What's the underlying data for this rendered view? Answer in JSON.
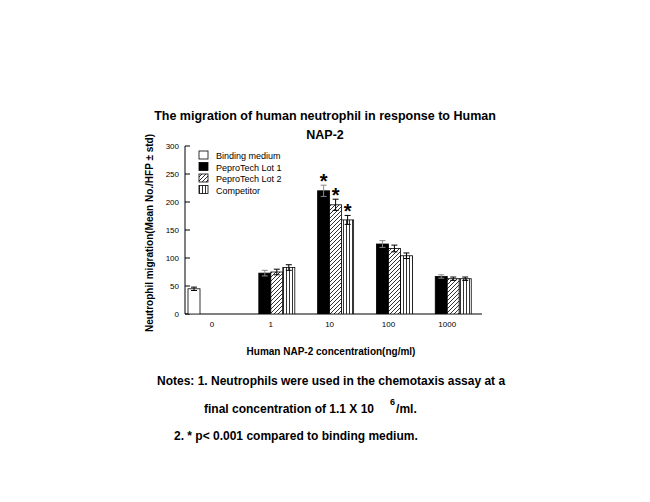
{
  "chart_data": {
    "type": "bar",
    "title": "The migration of human neutrophil in response to Human NAP-2",
    "x_label": "Human NAP-2 concentration(ng/ml)",
    "y_label": "Neutrophil migration(Mean No./HFP ± std)",
    "categories": [
      "0",
      "1",
      "10",
      "100",
      "1000"
    ],
    "series": [
      {
        "name": "Binding medium",
        "color": "#ffffff",
        "values": [
          45,
          null,
          null,
          null,
          null
        ],
        "errors": [
          3,
          null,
          null,
          null,
          null
        ]
      },
      {
        "name": "PeproTech Lot 1",
        "color": "#000000",
        "values": [
          null,
          73,
          220,
          125,
          67
        ],
        "errors": [
          null,
          5,
          10,
          6,
          3
        ]
      },
      {
        "name": "PeproTech Lot 2",
        "color": "#ffffff",
        "values": [
          null,
          75,
          195,
          117,
          63
        ],
        "errors": [
          null,
          5,
          10,
          6,
          3
        ]
      },
      {
        "name": "Competitor",
        "color": "#ffffff",
        "values": [
          null,
          83,
          168,
          104,
          63
        ],
        "errors": [
          null,
          5,
          8,
          5,
          3
        ]
      }
    ],
    "ylim": [
      0,
      300
    ],
    "yticks": [
      0,
      50,
      100,
      150,
      200,
      250,
      300
    ],
    "grid": false,
    "legend": "upper left",
    "annotations": [
      {
        "text": "*",
        "series": "PeproTech Lot 1",
        "category": "10"
      },
      {
        "text": "*",
        "series": "PeproTech Lot 2",
        "category": "10"
      },
      {
        "text": "*",
        "series": "Competitor",
        "category": "10"
      }
    ],
    "notes": {
      "line1": "Notes: 1. Neutrophils were used in the chemotaxis assay at a",
      "line2": "final concentration of 1.1 X 10",
      "exponent": "6",
      "line2_end": "/ml.",
      "line3": "2. * p< 0.001 compared to binding medium."
    }
  }
}
